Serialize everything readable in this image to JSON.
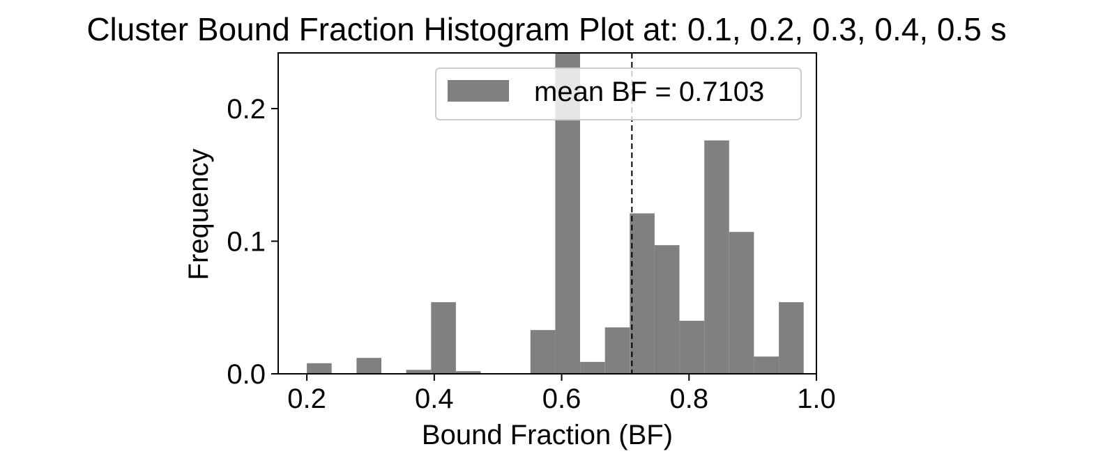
{
  "chart_data": {
    "type": "bar",
    "title": "Cluster Bound Fraction Histogram Plot at: 0.1, 0.2, 0.3, 0.4, 0.5 s",
    "xlabel": "Bound Fraction (BF)",
    "ylabel": "Frequency",
    "xlim": [
      0.155,
      1.0
    ],
    "ylim": [
      0,
      0.242
    ],
    "xticks": [
      0.2,
      0.4,
      0.6,
      0.8,
      1.0
    ],
    "xtick_labels": [
      "0.2",
      "0.4",
      "0.6",
      "0.8",
      "1.0"
    ],
    "yticks": [
      0.0,
      0.1,
      0.2
    ],
    "ytick_labels": [
      "0.0",
      "0.1",
      "0.2"
    ],
    "bin_edges": [
      0.2,
      0.239,
      0.278,
      0.317,
      0.356,
      0.395,
      0.434,
      0.473,
      0.512,
      0.551,
      0.59,
      0.629,
      0.668,
      0.707,
      0.746,
      0.785,
      0.824,
      0.863,
      0.902,
      0.941,
      0.98
    ],
    "bin_left_edges": [
      0.2,
      0.239,
      0.278,
      0.317,
      0.356,
      0.395,
      0.434,
      0.473,
      0.512,
      0.551,
      0.59,
      0.629,
      0.668,
      0.707,
      0.746,
      0.785,
      0.824,
      0.863,
      0.902,
      0.941
    ],
    "values": [
      0.008,
      0,
      0.012,
      0,
      0.003,
      0.054,
      0.002,
      0,
      0,
      0.033,
      0.242,
      0.009,
      0.035,
      0.121,
      0.097,
      0.04,
      0.176,
      0.107,
      0.013,
      0.054
    ],
    "bar_color": "#808080",
    "mean_bf": 0.7103,
    "mean_line": "dashed black vertical line at mean",
    "legend": {
      "label": "mean BF = 0.7103",
      "placement": "top-right"
    },
    "grid": false
  }
}
